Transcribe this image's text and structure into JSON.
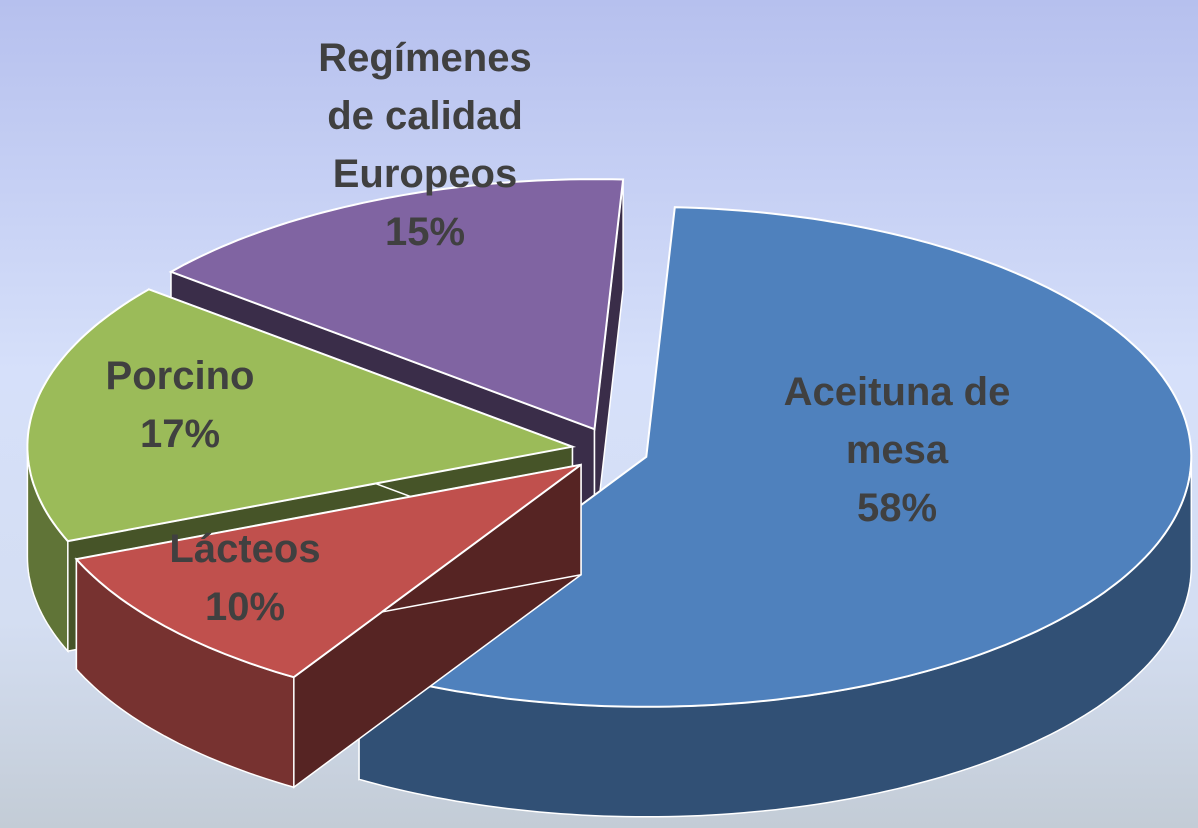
{
  "chart_data": {
    "type": "pie3d",
    "categories": [
      "Aceituna de mesa",
      "Lácteos",
      "Porcino",
      "Regímenes de calidad Europeos"
    ],
    "values": [
      58,
      10,
      17,
      15
    ],
    "value_labels": [
      "58%",
      "10%",
      "17%",
      "15%"
    ],
    "colors": [
      "#4f81bd",
      "#c0504d",
      "#9bbb59",
      "#8064a2"
    ]
  }
}
